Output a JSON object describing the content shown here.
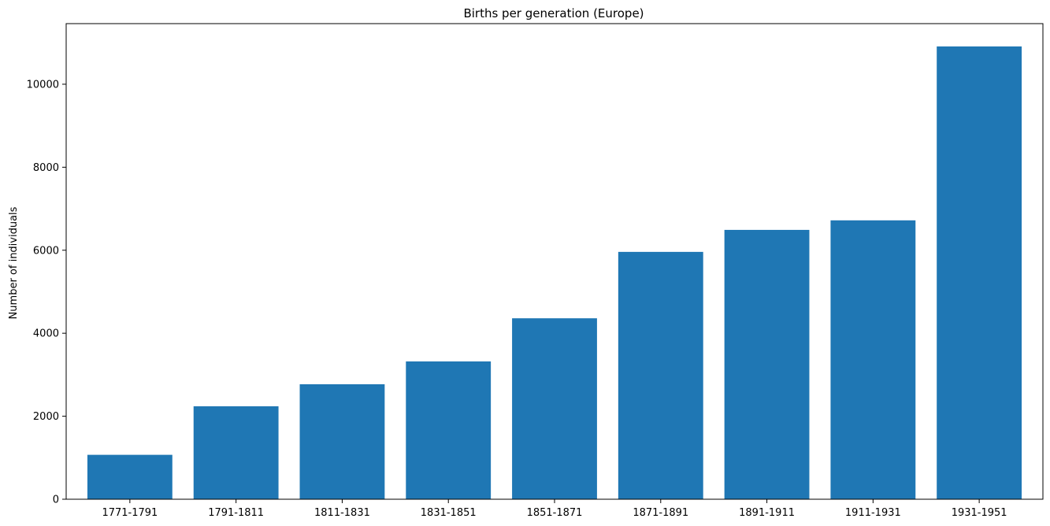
{
  "chart_data": {
    "type": "bar",
    "title": "Births per generation (Europe)",
    "xlabel": "",
    "ylabel": "Number of individuals",
    "categories": [
      "1771-1791",
      "1791-1811",
      "1811-1831",
      "1831-1851",
      "1851-1871",
      "1871-1891",
      "1891-1911",
      "1911-1931",
      "1931-1951"
    ],
    "values": [
      1070,
      2240,
      2770,
      3320,
      4360,
      5960,
      6490,
      6720,
      10910
    ],
    "ylim": [
      0,
      11460
    ],
    "yticks": [
      0,
      2000,
      4000,
      6000,
      8000,
      10000
    ],
    "bar_color": "#1f77b4",
    "grid": false,
    "legend": "none"
  }
}
